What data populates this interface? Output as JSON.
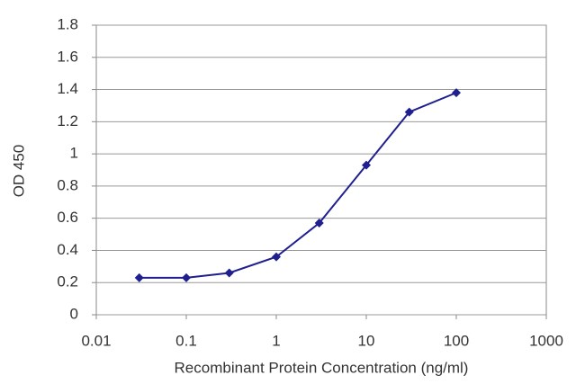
{
  "chart_data": {
    "type": "line",
    "xlabel": "Recombinant Protein Concentration (ng/ml)",
    "ylabel": "OD 450",
    "x": [
      0.03,
      0.1,
      0.3,
      1,
      3,
      10,
      30,
      100
    ],
    "values": [
      0.23,
      0.23,
      0.26,
      0.36,
      0.57,
      0.93,
      1.26,
      1.38
    ],
    "color": "#1f1f8f",
    "xscale": "log",
    "xlim": [
      0.01,
      1000
    ],
    "xticks": [
      0.01,
      0.1,
      1,
      10,
      100,
      1000
    ],
    "ylim": [
      0,
      1.8
    ],
    "yticks": [
      0,
      0.2,
      0.4,
      0.6,
      0.8,
      1,
      1.2,
      1.4,
      1.6,
      1.8
    ],
    "grid": true
  }
}
